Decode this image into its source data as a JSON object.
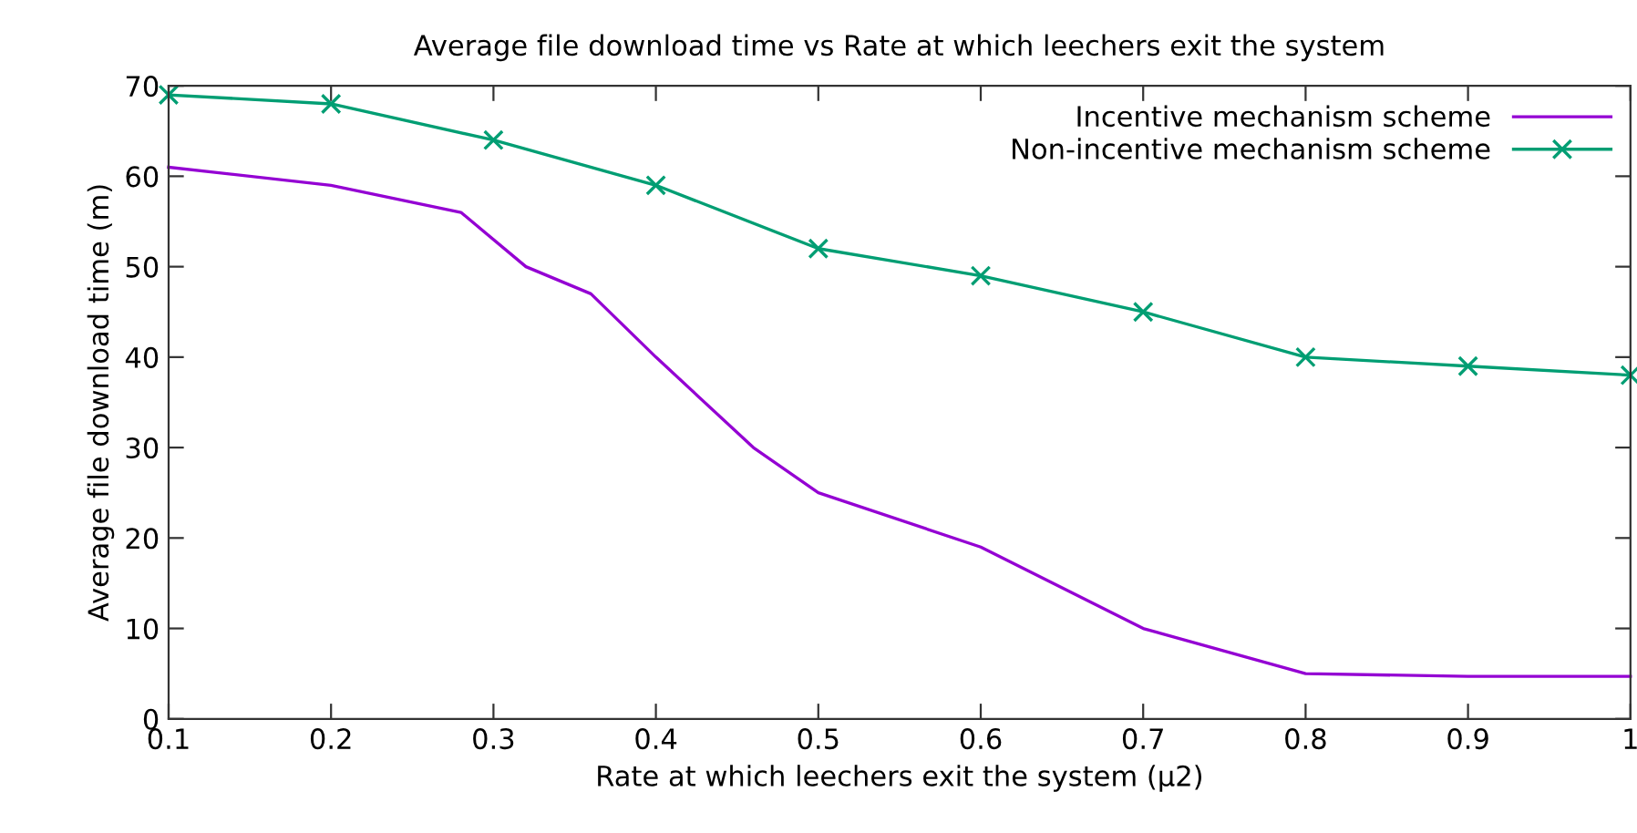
{
  "chart_data": {
    "type": "line",
    "title": "Average file download time vs Rate at which leechers exit the system",
    "xlabel": "Rate at which leechers exit the system (μ2)",
    "ylabel": "Average file download time (m)",
    "xlim": [
      0.1,
      1
    ],
    "xticks": [
      0.1,
      0.2,
      0.3,
      0.4,
      0.5,
      0.6,
      0.7,
      0.8,
      0.9,
      {
        "value": 1,
        "label": "1"
      }
    ],
    "ylim": [
      0,
      70
    ],
    "yticks": [
      0,
      10,
      20,
      30,
      40,
      50,
      60,
      70
    ],
    "grid": false,
    "legend": "top right",
    "series": [
      {
        "name": "Incentive mechanism scheme",
        "color": "#9400d3",
        "marker": "none",
        "x": [
          0.1,
          0.2,
          0.28,
          0.32,
          0.36,
          0.4,
          0.46,
          0.5,
          0.6,
          0.7,
          0.8,
          0.9,
          1.0
        ],
        "values": [
          61,
          59,
          56,
          50,
          47,
          40,
          30,
          25,
          19,
          10,
          5,
          4.7,
          4.7
        ]
      },
      {
        "name": "Non-incentive mechanism scheme",
        "color": "#009e73",
        "marker": "cross",
        "x": [
          0.1,
          0.2,
          0.3,
          0.4,
          0.5,
          0.6,
          0.7,
          0.8,
          0.9,
          1.0
        ],
        "values": [
          69,
          68,
          64,
          59,
          52,
          49,
          45,
          40,
          39,
          38
        ]
      }
    ]
  }
}
